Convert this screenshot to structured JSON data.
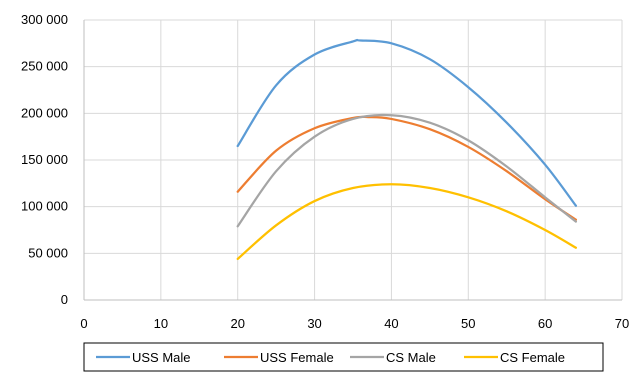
{
  "chart_data": {
    "type": "line",
    "title": "",
    "xlabel": "",
    "ylabel": "",
    "xlim": [
      0,
      70
    ],
    "ylim": [
      0,
      300000
    ],
    "x_ticks": [
      0,
      10,
      20,
      30,
      40,
      50,
      60,
      70
    ],
    "x_tick_labels": [
      "0",
      "10",
      "20",
      "30",
      "40",
      "50",
      "60",
      "70"
    ],
    "y_ticks": [
      0,
      50000,
      100000,
      150000,
      200000,
      250000,
      300000
    ],
    "y_tick_labels": [
      "0",
      "50 000",
      "100 000",
      "150 000",
      "200 000",
      "250 000",
      "300 000"
    ],
    "grid": true,
    "legend_position": "bottom",
    "series": [
      {
        "name": "USS Male",
        "color": "#5b9bd5",
        "x": [
          20,
          25,
          30,
          35,
          36,
          40,
          45,
          50,
          55,
          60,
          64
        ],
        "values": [
          165000,
          230000,
          263000,
          277000,
          278000,
          275000,
          258000,
          228000,
          190000,
          145000,
          101000
        ]
      },
      {
        "name": "USS Female",
        "color": "#ed7d31",
        "x": [
          20,
          25,
          30,
          35,
          37,
          40,
          45,
          50,
          55,
          60,
          64
        ],
        "values": [
          116000,
          160000,
          184000,
          195000,
          196000,
          194000,
          183000,
          164000,
          138000,
          108000,
          86000
        ]
      },
      {
        "name": "CS Male",
        "color": "#a5a5a5",
        "x": [
          20,
          25,
          30,
          35,
          40,
          45,
          50,
          55,
          60,
          64
        ],
        "values": [
          79000,
          138000,
          175000,
          194000,
          198000,
          190000,
          171000,
          143000,
          110000,
          84000
        ]
      },
      {
        "name": "CS Female",
        "color": "#ffc000",
        "x": [
          20,
          25,
          30,
          35,
          40,
          45,
          50,
          55,
          60,
          64
        ],
        "values": [
          44000,
          80000,
          106000,
          120000,
          124000,
          120000,
          110000,
          95000,
          75000,
          56000
        ]
      }
    ]
  }
}
